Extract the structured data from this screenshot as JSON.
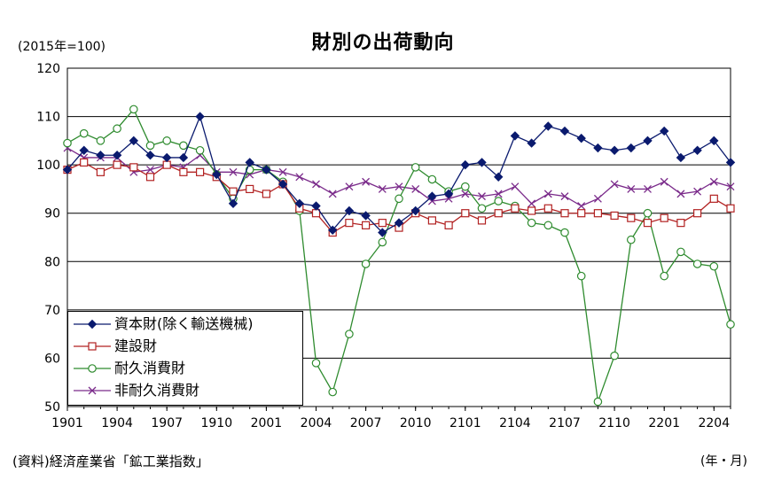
{
  "header": {
    "title": "財別の出荷動向",
    "unit_label": "(2015年=100)",
    "source": "(資料)経済産業省「鉱工業指数」",
    "x_unit": "(年・月)"
  },
  "chart_data": {
    "type": "line",
    "title": "財別の出荷動向",
    "ylabel": "(2015年=100)",
    "xlabel": "(年・月)",
    "ylim": [
      50,
      120
    ],
    "yticks": [
      50,
      60,
      70,
      80,
      90,
      100,
      110,
      120
    ],
    "grid": true,
    "legend_position": "bottom-left",
    "xtick_labels": [
      "1901",
      "1904",
      "1907",
      "1910",
      "2001",
      "2004",
      "2007",
      "2010",
      "2101",
      "2104",
      "2107",
      "2110",
      "2201",
      "2204"
    ],
    "series": [
      {
        "name": "資本財(除く輸送機械)",
        "color": "#0a1a6e",
        "marker": "diamond",
        "values": [
          99,
          103,
          102,
          102,
          105,
          102,
          101.5,
          101.5,
          110,
          98,
          92,
          100.5,
          99,
          96,
          92,
          91.5,
          86.5,
          90.5,
          89.5,
          86,
          88,
          90.5,
          93.5,
          94,
          100,
          100.5,
          97.5,
          106,
          104.5,
          108,
          107,
          105.5,
          103.5,
          103,
          103.5,
          105,
          107,
          101.5,
          103,
          105,
          100.5
        ]
      },
      {
        "name": "建設財",
        "color": "#b22222",
        "marker": "square",
        "values": [
          99,
          100.5,
          98.5,
          100,
          99.5,
          97.5,
          100,
          98.5,
          98.5,
          97.5,
          94.5,
          95,
          94,
          96,
          91,
          90,
          86,
          88,
          87.5,
          88,
          87,
          90,
          88.5,
          87.5,
          90,
          88.5,
          90,
          91,
          90.5,
          91,
          90,
          90,
          90,
          89.5,
          89,
          88,
          89,
          88,
          90,
          93,
          91
        ]
      },
      {
        "name": "耐久消費財",
        "color": "#2e8b2e",
        "marker": "circle",
        "values": [
          104.5,
          106.5,
          105,
          107.5,
          111.5,
          104,
          105,
          104,
          103,
          98,
          93,
          99,
          99,
          96.5,
          90.5,
          59,
          53,
          65,
          79.5,
          84,
          93,
          99.5,
          97,
          94.5,
          95.5,
          91,
          92.5,
          91.5,
          88,
          87.5,
          86,
          77,
          51,
          60.5,
          84.5,
          90,
          77,
          82,
          79.5,
          79,
          67
        ]
      },
      {
        "name": "非耐久消費財",
        "color": "#7a2a8a",
        "marker": "x",
        "values": [
          103.5,
          101.5,
          101.5,
          101.5,
          98.5,
          99,
          100,
          99.5,
          102,
          98.5,
          98.5,
          98,
          99,
          98.5,
          97.5,
          96,
          94,
          95.5,
          96.5,
          95,
          95.5,
          95,
          92.5,
          93,
          94,
          93.5,
          94,
          95.5,
          92,
          94,
          93.5,
          91.5,
          93,
          96,
          95,
          95,
          96.5,
          94,
          94.5,
          96.5,
          95.5
        ]
      }
    ]
  }
}
